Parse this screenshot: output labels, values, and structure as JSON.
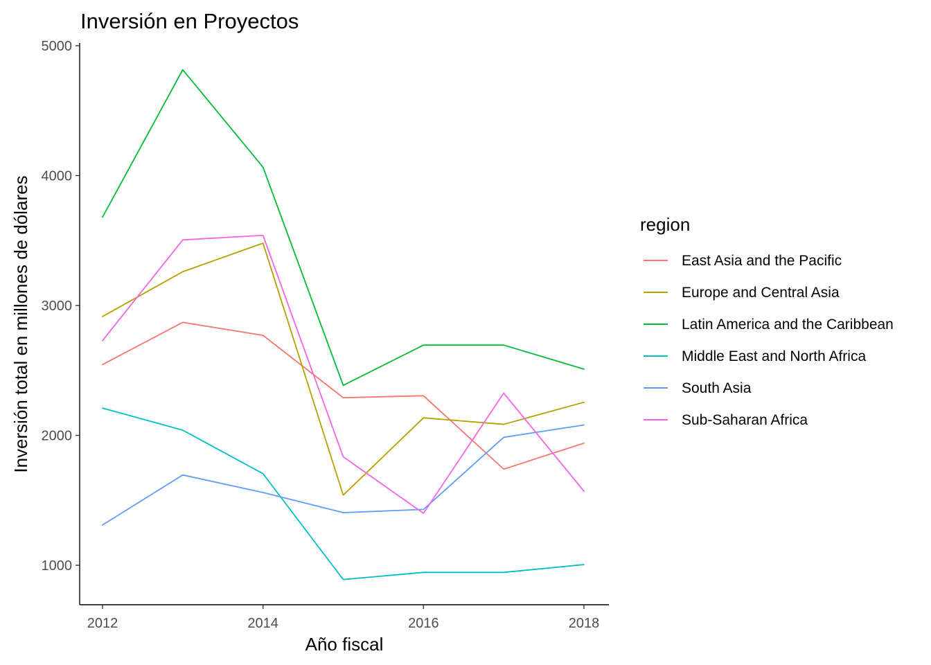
{
  "chart_data": {
    "type": "line",
    "title": "Inversión en Proyectos",
    "xlabel": "Año fiscal",
    "ylabel": "Inversión total en millones de dólares",
    "xlim": [
      2011.85,
      2018.15
    ],
    "ylim": [
      700,
      5000
    ],
    "x": [
      2012,
      2013,
      2014,
      2015,
      2016,
      2017,
      2018
    ],
    "x_ticks": [
      2012,
      2014,
      2016,
      2018
    ],
    "x_tick_labels": [
      "2012",
      "2014",
      "2016",
      "2018"
    ],
    "y_ticks": [
      1000,
      2000,
      3000,
      4000,
      5000
    ],
    "y_tick_labels": [
      "1000",
      "2000",
      "3000",
      "4000",
      "5000"
    ],
    "grid": false,
    "legend": {
      "title": "region",
      "position": "right"
    },
    "series": [
      {
        "name": "East Asia and the Pacific",
        "color": "#F8766D",
        "values": [
          2545,
          2870,
          2770,
          2290,
          2305,
          1740,
          1940
        ]
      },
      {
        "name": "Europe and Central Asia",
        "color": "#B79F00",
        "values": [
          2915,
          3260,
          3480,
          1540,
          2135,
          2085,
          2255
        ]
      },
      {
        "name": "Latin America and the Caribbean",
        "color": "#00BA38",
        "values": [
          3680,
          4815,
          4065,
          2385,
          2695,
          2695,
          2510
        ]
      },
      {
        "name": "Middle East and North Africa",
        "color": "#00BFC4",
        "values": [
          2210,
          2040,
          1705,
          890,
          945,
          945,
          1005
        ]
      },
      {
        "name": "South Asia",
        "color": "#619CFF",
        "values": [
          1310,
          1695,
          1560,
          1405,
          1430,
          1985,
          2080
        ]
      },
      {
        "name": "Sub-Saharan Africa",
        "color": "#F564E3",
        "values": [
          2730,
          3505,
          3540,
          1835,
          1400,
          2325,
          1570
        ]
      }
    ]
  }
}
